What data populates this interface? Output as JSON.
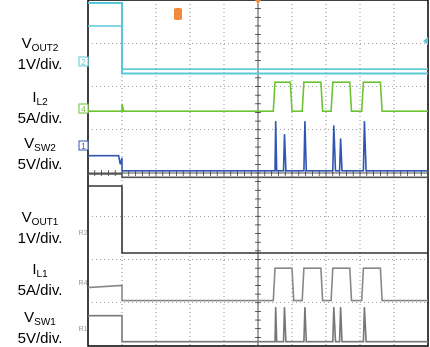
{
  "labels": [
    {
      "id": "vout2",
      "name": "V",
      "sub": "OUT2",
      "scale": "1V/div."
    },
    {
      "id": "il2",
      "name": "I",
      "sub": "L2",
      "scale": "5A/div."
    },
    {
      "id": "vsw2",
      "name": "V",
      "sub": "SW2",
      "scale": "5V/div."
    },
    {
      "id": "vout1",
      "name": "V",
      "sub": "OUT1",
      "scale": "1V/div."
    },
    {
      "id": "il1",
      "name": "I",
      "sub": "L1",
      "scale": "5A/div."
    },
    {
      "id": "vsw1",
      "name": "V",
      "sub": "SW1",
      "scale": "5V/div."
    }
  ],
  "markers": [
    {
      "id": "m2",
      "text": "2",
      "color": "#5bc8d8"
    },
    {
      "id": "m4",
      "text": "4",
      "color": "#6dc430"
    },
    {
      "id": "m1",
      "text": "1",
      "color": "#2f56b0"
    },
    {
      "id": "mR2",
      "text": "R2",
      "color": "#9a9a9a"
    },
    {
      "id": "mR4",
      "text": "R4",
      "color": "#9a9a9a"
    },
    {
      "id": "mR1",
      "text": "R1",
      "color": "#9a9a9a"
    }
  ],
  "chart_data": {
    "type": "line",
    "grid": {
      "h_divisions": 8,
      "v_divisions": 10
    },
    "trigger_time_div": 1,
    "xlim": [
      0,
      10
    ],
    "ylim": [
      -4,
      4
    ],
    "series": [
      {
        "key": "vout2_top",
        "color": "#5bc8d8",
        "points": [
          [
            0,
            3.93
          ],
          [
            1.0,
            3.93
          ],
          [
            1.0,
            2.3
          ],
          [
            10,
            2.3
          ]
        ]
      },
      {
        "key": "vout2",
        "color": "#5bc8d8",
        "points": [
          [
            0,
            3.4
          ],
          [
            1.0,
            3.4
          ],
          [
            1.0,
            2.4
          ],
          [
            10,
            2.4
          ]
        ]
      },
      {
        "key": "il2",
        "color": "#6dc430",
        "points": [
          [
            0,
            1.43
          ],
          [
            1.0,
            1.43
          ],
          [
            1.0,
            1.6
          ],
          [
            1.05,
            1.43
          ],
          [
            5.45,
            1.43
          ],
          [
            5.5,
            2.1
          ],
          [
            5.95,
            2.1
          ],
          [
            6.0,
            1.43
          ],
          [
            6.3,
            1.43
          ],
          [
            6.35,
            2.1
          ],
          [
            6.85,
            2.1
          ],
          [
            6.9,
            1.43
          ],
          [
            7.15,
            1.43
          ],
          [
            7.2,
            2.1
          ],
          [
            7.7,
            2.1
          ],
          [
            7.75,
            1.43
          ],
          [
            8.05,
            1.43
          ],
          [
            8.1,
            2.1
          ],
          [
            8.6,
            2.1
          ],
          [
            8.65,
            1.43
          ],
          [
            10,
            1.43
          ]
        ]
      },
      {
        "key": "vsw2",
        "color": "#2f56b0",
        "points": [
          [
            0,
            0.4
          ],
          [
            0.9,
            0.4
          ],
          [
            0.95,
            0.2
          ],
          [
            1.0,
            0.35
          ],
          [
            1.0,
            0.05
          ],
          [
            5.5,
            0.05
          ],
          [
            5.52,
            1.2
          ],
          [
            5.55,
            0.05
          ],
          [
            5.75,
            0.05
          ],
          [
            5.78,
            0.9
          ],
          [
            5.82,
            0.05
          ],
          [
            6.35,
            0.05
          ],
          [
            6.38,
            1.2
          ],
          [
            6.42,
            0.05
          ],
          [
            7.2,
            0.05
          ],
          [
            7.23,
            1.1
          ],
          [
            7.28,
            0.05
          ],
          [
            7.4,
            0.05
          ],
          [
            7.43,
            0.8
          ],
          [
            7.47,
            0.05
          ],
          [
            8.1,
            0.05
          ],
          [
            8.13,
            1.2
          ],
          [
            8.18,
            0.05
          ],
          [
            10,
            0.05
          ]
        ]
      },
      {
        "key": "vsw2_ref",
        "color": "#555555",
        "points": [
          [
            0,
            -0.02
          ],
          [
            1.0,
            -0.02
          ],
          [
            1.0,
            -0.1
          ],
          [
            10,
            -0.1
          ]
        ]
      },
      {
        "key": "vout1",
        "color": "#333333",
        "points": [
          [
            0,
            -0.3
          ],
          [
            1.0,
            -0.3
          ],
          [
            1.0,
            -1.85
          ],
          [
            10,
            -1.85
          ]
        ]
      },
      {
        "key": "il1",
        "color": "#888888",
        "points": [
          [
            0,
            -2.65
          ],
          [
            1.0,
            -2.6
          ],
          [
            1.0,
            -2.95
          ],
          [
            5.45,
            -2.95
          ],
          [
            5.5,
            -2.2
          ],
          [
            6.0,
            -2.2
          ],
          [
            6.05,
            -2.95
          ],
          [
            6.3,
            -2.95
          ],
          [
            6.35,
            -2.2
          ],
          [
            6.85,
            -2.2
          ],
          [
            6.9,
            -2.95
          ],
          [
            7.15,
            -2.95
          ],
          [
            7.2,
            -2.2
          ],
          [
            7.7,
            -2.2
          ],
          [
            7.75,
            -2.95
          ],
          [
            8.05,
            -2.95
          ],
          [
            8.1,
            -2.2
          ],
          [
            8.6,
            -2.2
          ],
          [
            8.65,
            -2.95
          ],
          [
            10,
            -2.95
          ]
        ]
      },
      {
        "key": "vsw1",
        "color": "#777777",
        "points": [
          [
            0,
            -3.3
          ],
          [
            1.0,
            -3.3
          ],
          [
            1.0,
            -3.9
          ],
          [
            5.5,
            -3.9
          ],
          [
            5.52,
            -3.1
          ],
          [
            5.55,
            -3.9
          ],
          [
            5.75,
            -3.9
          ],
          [
            5.78,
            -3.1
          ],
          [
            5.82,
            -3.9
          ],
          [
            6.35,
            -3.9
          ],
          [
            6.38,
            -3.1
          ],
          [
            6.42,
            -3.9
          ],
          [
            7.2,
            -3.9
          ],
          [
            7.23,
            -3.1
          ],
          [
            7.28,
            -3.9
          ],
          [
            7.4,
            -3.9
          ],
          [
            7.43,
            -3.1
          ],
          [
            7.47,
            -3.9
          ],
          [
            8.1,
            -3.9
          ],
          [
            8.13,
            -3.1
          ],
          [
            8.18,
            -3.9
          ],
          [
            10,
            -3.9
          ]
        ]
      }
    ]
  }
}
